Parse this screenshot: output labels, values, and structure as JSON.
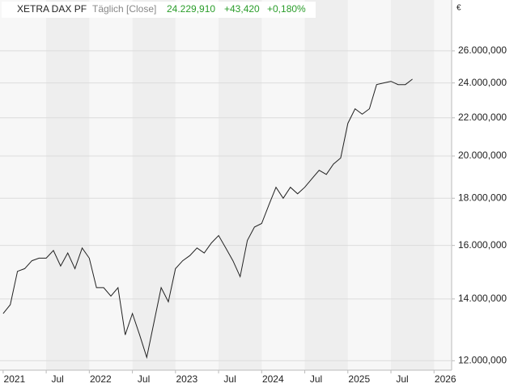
{
  "chart_data": {
    "type": "line",
    "title": "XETRA DAX PF",
    "subtitle": "Täglich [Close]",
    "annotations": [
      "24.229,910",
      "+43,420",
      "+0,180%"
    ],
    "currency": "€",
    "x": [
      "2021-01",
      "2021-02",
      "2021-03",
      "2021-04",
      "2021-05",
      "2021-06",
      "2021-07",
      "2021-08",
      "2021-09",
      "2021-10",
      "2021-11",
      "2021-12",
      "2022-01",
      "2022-02",
      "2022-03",
      "2022-04",
      "2022-05",
      "2022-06",
      "2022-07",
      "2022-08",
      "2022-09",
      "2022-10",
      "2022-11",
      "2022-12",
      "2023-01",
      "2023-02",
      "2023-03",
      "2023-04",
      "2023-05",
      "2023-06",
      "2023-07",
      "2023-08",
      "2023-09",
      "2023-10",
      "2023-11",
      "2023-12",
      "2024-01",
      "2024-02",
      "2024-03",
      "2024-04",
      "2024-05",
      "2024-06",
      "2024-07",
      "2024-08",
      "2024-09",
      "2024-10",
      "2024-11",
      "2024-12",
      "2025-01",
      "2025-02",
      "2025-03",
      "2025-04",
      "2025-05",
      "2025-06",
      "2025-07",
      "2025-08",
      "2025-09",
      "2025-10"
    ],
    "series": [
      {
        "name": "XETRA DAX PF",
        "color": "#222222",
        "values": [
          13500,
          13800,
          15000,
          15100,
          15400,
          15500,
          15500,
          15800,
          15200,
          15700,
          15100,
          15900,
          15500,
          14400,
          14400,
          14100,
          14400,
          12800,
          13500,
          12800,
          12100,
          13200,
          14400,
          13900,
          15100,
          15400,
          15600,
          15900,
          15700,
          16100,
          16400,
          15900,
          15400,
          14800,
          16200,
          16750,
          16900,
          17700,
          18500,
          18000,
          18500,
          18200,
          18500,
          18900,
          19300,
          19100,
          19600,
          19900,
          21700,
          22500,
          22200,
          22500,
          23900,
          24000,
          24100,
          23900,
          23900,
          24229.91
        ]
      }
    ],
    "xlim": [
      "2020-12",
      "2026-03"
    ],
    "xticks": [
      {
        "value": "2021-01",
        "label": "2021"
      },
      {
        "value": "2021-07",
        "label": "Jul"
      },
      {
        "value": "2022-01",
        "label": "2022"
      },
      {
        "value": "2022-07",
        "label": "Jul"
      },
      {
        "value": "2023-01",
        "label": "2023"
      },
      {
        "value": "2023-07",
        "label": "Jul"
      },
      {
        "value": "2024-01",
        "label": "2024"
      },
      {
        "value": "2024-07",
        "label": "Jul"
      },
      {
        "value": "2025-01",
        "label": "2025"
      },
      {
        "value": "2025-07",
        "label": "Jul"
      },
      {
        "value": "2026-01",
        "label": "2026"
      }
    ],
    "ylim": [
      11720,
      29400
    ],
    "log_scale": true,
    "grid": true,
    "yticks": [
      {
        "value": 12000,
        "label": "12.000,000"
      },
      {
        "value": 14000,
        "label": "14.000,000"
      },
      {
        "value": 16000,
        "label": "16.000,000"
      },
      {
        "value": 18000,
        "label": "18.000,000"
      },
      {
        "value": 20000,
        "label": "20.000,000"
      },
      {
        "value": 22000,
        "label": "22.000,000"
      },
      {
        "value": 24000,
        "label": "24.000,000"
      },
      {
        "value": 26000,
        "label": "26.000,000"
      }
    ]
  }
}
